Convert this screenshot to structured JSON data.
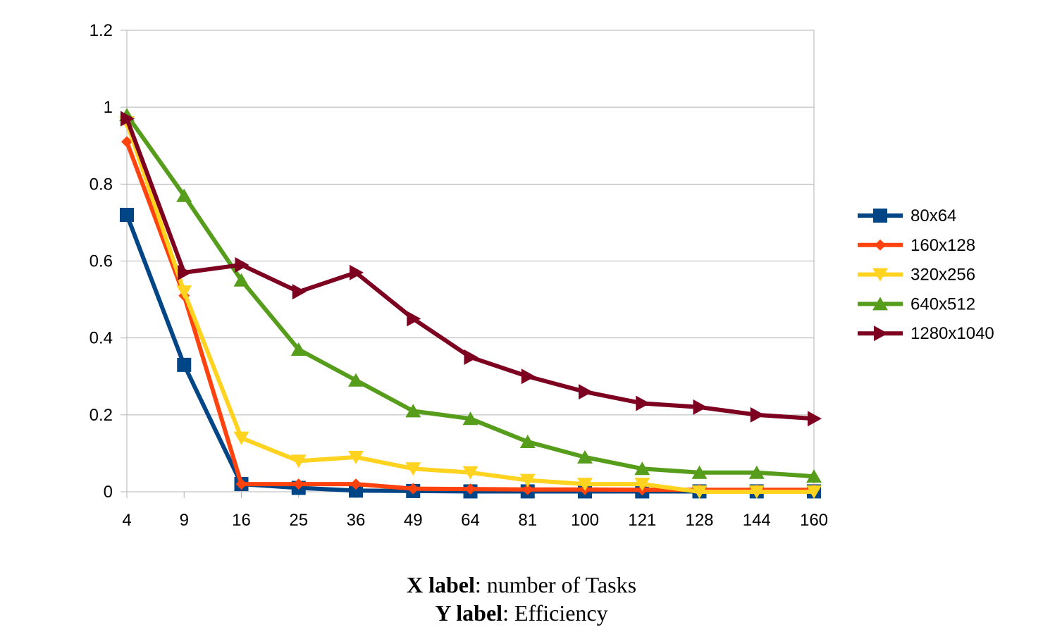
{
  "chart_data": {
    "type": "line",
    "categories": [
      "4",
      "9",
      "16",
      "25",
      "36",
      "49",
      "64",
      "81",
      "100",
      "121",
      "128",
      "144",
      "160"
    ],
    "ylim": [
      0,
      1.2
    ],
    "yticks": [
      "0",
      "0.2",
      "0.4",
      "0.6",
      "0.8",
      "1",
      "1.2"
    ],
    "grid": true,
    "legend_position": "right",
    "series": [
      {
        "name": "80x64",
        "color": "#004586",
        "marker": "square",
        "values": [
          0.72,
          0.33,
          0.02,
          0.01,
          0.003,
          0.002,
          0.001,
          0.001,
          0.001,
          0.001,
          0.001,
          0.001,
          0.001
        ]
      },
      {
        "name": "160x128",
        "color": "#ff420e",
        "marker": "diamond",
        "values": [
          0.91,
          0.51,
          0.02,
          0.02,
          0.02,
          0.008,
          0.007,
          0.006,
          0.006,
          0.005,
          0.005,
          0.005,
          0.005
        ]
      },
      {
        "name": "320x256",
        "color": "#ffd320",
        "marker": "triangle-down",
        "values": [
          0.96,
          0.52,
          0.14,
          0.08,
          0.09,
          0.06,
          0.05,
          0.03,
          0.02,
          0.02,
          0.0,
          0.0,
          0.0
        ]
      },
      {
        "name": "640x512",
        "color": "#579d1c",
        "marker": "triangle-up",
        "values": [
          0.98,
          0.77,
          0.55,
          0.37,
          0.29,
          0.21,
          0.19,
          0.13,
          0.09,
          0.06,
          0.05,
          0.05,
          0.04
        ]
      },
      {
        "name": "1280x1040",
        "color": "#7e0021",
        "marker": "triangle-right",
        "values": [
          0.97,
          0.57,
          0.59,
          0.52,
          0.57,
          0.45,
          0.35,
          0.3,
          0.26,
          0.23,
          0.22,
          0.2,
          0.19
        ]
      }
    ]
  },
  "caption": {
    "x_prefix": "X label",
    "x_text": ": number of Tasks",
    "y_prefix": "Y label",
    "y_text": ": Efficiency"
  }
}
